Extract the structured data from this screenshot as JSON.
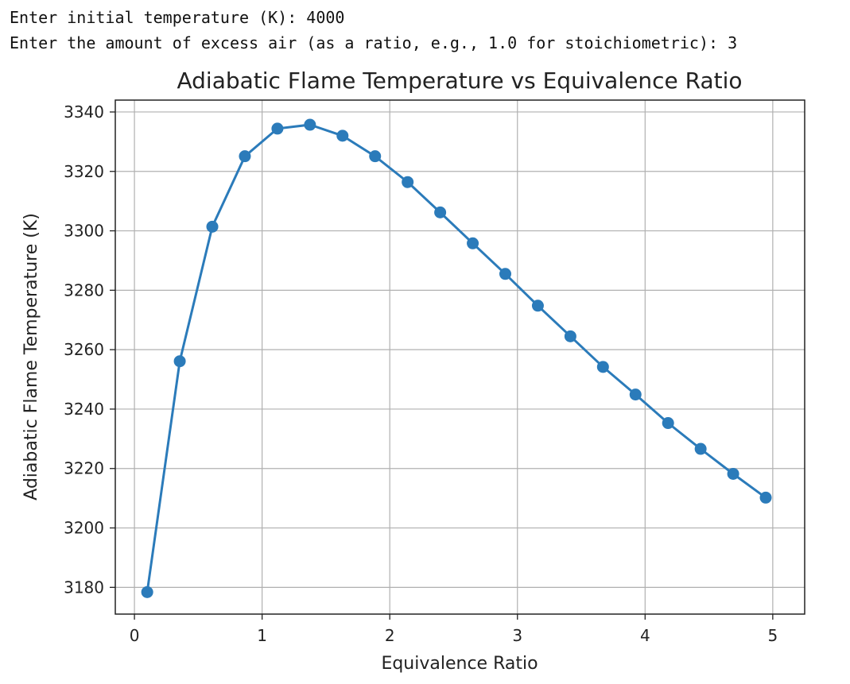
{
  "console": {
    "line1": "Enter initial temperature (K): 4000",
    "line2": "Enter the amount of excess air (as a ratio, e.g., 1.0 for stoichiometric): 3"
  },
  "chart_data": {
    "type": "line",
    "title": "Adiabatic Flame Temperature vs Equivalence Ratio",
    "xlabel": "Equivalence Ratio",
    "ylabel": "Adiabatic Flame Temperature (K)",
    "xlim": [
      -0.15,
      5.25
    ],
    "ylim": [
      3171,
      3344
    ],
    "xticks": [
      0,
      1,
      2,
      3,
      4,
      5
    ],
    "yticks": [
      3180,
      3200,
      3220,
      3240,
      3260,
      3280,
      3300,
      3320,
      3340
    ],
    "grid": true,
    "marker": "circle",
    "line_color": "#2b7bba",
    "series": [
      {
        "x": [
          0.1,
          0.355,
          0.61,
          0.865,
          1.12,
          1.375,
          1.63,
          1.885,
          2.14,
          2.395,
          2.65,
          2.905,
          3.16,
          3.415,
          3.67,
          3.925,
          4.18,
          4.435,
          4.69,
          4.945
        ],
        "y": [
          3178.4,
          3256.1,
          3301.4,
          3325.1,
          3334.4,
          3335.7,
          3332.0,
          3325.1,
          3316.4,
          3306.2,
          3295.8,
          3285.5,
          3274.8,
          3264.5,
          3254.2,
          3244.9,
          3235.3,
          3226.6,
          3218.2,
          3210.2
        ]
      }
    ]
  }
}
